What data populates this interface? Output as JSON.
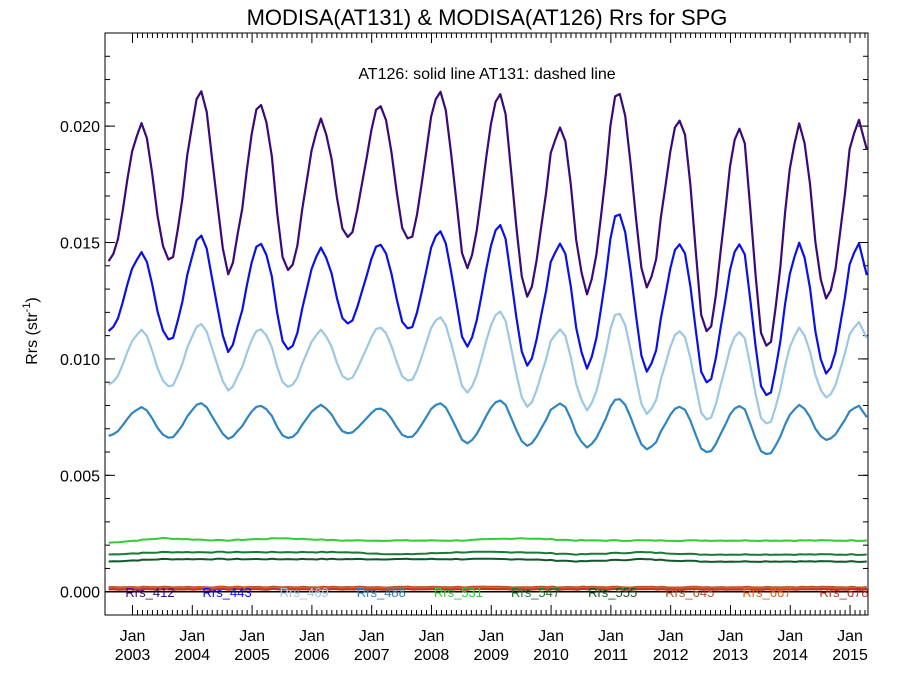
{
  "chart_data": {
    "type": "line",
    "title": "MODISA(AT131) & MODISA(AT126)  Rrs for SPG",
    "annotation": "AT126: solid line   AT131: dashed line",
    "ylabel_main": "Rrs (str",
    "ylabel_sup": "-1",
    "ylabel_end": ")",
    "xlabel": "",
    "ylim": [
      -0.001,
      0.024
    ],
    "xlim": [
      2002.54,
      2015.3
    ],
    "y_ticks": [
      "0.000",
      "0.005",
      "0.010",
      "0.015",
      "0.020"
    ],
    "y_tick_values": [
      0.0,
      0.005,
      0.01,
      0.015,
      0.02
    ],
    "x_ticks": [
      {
        "month": "Jan",
        "year": "2003",
        "x": 2003.0
      },
      {
        "month": "Jan",
        "year": "2004",
        "x": 2004.0
      },
      {
        "month": "Jan",
        "year": "2005",
        "x": 2005.0
      },
      {
        "month": "Jan",
        "year": "2006",
        "x": 2006.0
      },
      {
        "month": "Jan",
        "year": "2007",
        "x": 2007.0
      },
      {
        "month": "Jan",
        "year": "2008",
        "x": 2008.0
      },
      {
        "month": "Jan",
        "year": "2009",
        "x": 2009.0
      },
      {
        "month": "Jan",
        "year": "2010",
        "x": 2010.0
      },
      {
        "month": "Jan",
        "year": "2011",
        "x": 2011.0
      },
      {
        "month": "Jan",
        "year": "2012",
        "x": 2012.0
      },
      {
        "month": "Jan",
        "year": "2013",
        "x": 2013.0
      },
      {
        "month": "Jan",
        "year": "2014",
        "x": 2014.0
      },
      {
        "month": "Jan",
        "year": "2015",
        "x": 2015.0
      }
    ],
    "legend_position": "bottom",
    "grid": false,
    "series": [
      {
        "name": "Rrs_412",
        "color": "#3a0a78",
        "x": [
          2002.6,
          2003.15,
          2003.6,
          2004.15,
          2004.6,
          2005.15,
          2005.6,
          2006.15,
          2006.6,
          2007.15,
          2007.6,
          2008.15,
          2008.6,
          2009.15,
          2009.6,
          2010.15,
          2010.6,
          2011.15,
          2011.6,
          2012.15,
          2012.6,
          2013.15,
          2013.6,
          2014.15,
          2014.6,
          2015.15,
          2015.28
        ],
        "y": [
          0.0142,
          0.02,
          0.0142,
          0.0215,
          0.0138,
          0.021,
          0.0138,
          0.0202,
          0.0152,
          0.021,
          0.015,
          0.0215,
          0.014,
          0.0213,
          0.0128,
          0.02,
          0.0128,
          0.0215,
          0.013,
          0.0205,
          0.0112,
          0.02,
          0.0105,
          0.02,
          0.0125,
          0.0203,
          0.019
        ]
      },
      {
        "name": "Rrs_443",
        "color": "#0a10e8",
        "x": [
          2002.6,
          2003.15,
          2003.6,
          2004.15,
          2004.6,
          2005.15,
          2005.6,
          2006.15,
          2006.6,
          2007.15,
          2007.6,
          2008.15,
          2008.6,
          2009.15,
          2009.6,
          2010.15,
          2010.6,
          2011.15,
          2011.6,
          2012.15,
          2012.6,
          2013.15,
          2013.6,
          2014.15,
          2014.6,
          2015.15,
          2015.28
        ],
        "y": [
          0.0112,
          0.0145,
          0.0108,
          0.0153,
          0.0104,
          0.015,
          0.0104,
          0.0147,
          0.0115,
          0.015,
          0.0112,
          0.0155,
          0.0106,
          0.0157,
          0.0098,
          0.015,
          0.0096,
          0.0163,
          0.0094,
          0.0151,
          0.009,
          0.015,
          0.0084,
          0.0149,
          0.0093,
          0.015,
          0.0136
        ]
      },
      {
        "name": "Rrs_469",
        "color": "#9bc8e2",
        "x": [
          2002.6,
          2003.15,
          2003.6,
          2004.15,
          2004.6,
          2005.15,
          2005.6,
          2006.15,
          2006.6,
          2007.15,
          2007.6,
          2008.15,
          2008.6,
          2009.15,
          2009.6,
          2010.15,
          2010.6,
          2011.15,
          2011.6,
          2012.15,
          2012.6,
          2013.15,
          2013.6,
          2014.15,
          2014.6,
          2015.15,
          2015.28
        ],
        "y": [
          0.0089,
          0.0112,
          0.0088,
          0.0115,
          0.0087,
          0.0113,
          0.0088,
          0.0112,
          0.0091,
          0.0114,
          0.009,
          0.0118,
          0.0086,
          0.012,
          0.008,
          0.0113,
          0.0078,
          0.012,
          0.0076,
          0.0113,
          0.0074,
          0.0112,
          0.0072,
          0.0113,
          0.0083,
          0.0116,
          0.0109
        ]
      },
      {
        "name": "Rrs_488",
        "color": "#2f86be",
        "x": [
          2002.6,
          2003.15,
          2003.6,
          2004.15,
          2004.6,
          2005.15,
          2005.6,
          2006.15,
          2006.6,
          2007.15,
          2007.6,
          2008.15,
          2008.6,
          2009.15,
          2009.6,
          2010.15,
          2010.6,
          2011.15,
          2011.6,
          2012.15,
          2012.6,
          2013.15,
          2013.6,
          2014.15,
          2014.6,
          2015.15,
          2015.28
        ],
        "y": [
          0.0067,
          0.0079,
          0.0066,
          0.0081,
          0.0066,
          0.008,
          0.0066,
          0.008,
          0.0068,
          0.0079,
          0.0066,
          0.0081,
          0.0064,
          0.0082,
          0.0063,
          0.0081,
          0.0062,
          0.0083,
          0.0061,
          0.008,
          0.006,
          0.008,
          0.0059,
          0.008,
          0.0065,
          0.008,
          0.0075
        ]
      },
      {
        "name": "Rrs_531",
        "color": "#33cc33",
        "x": [
          2002.6,
          2003.5,
          2004.5,
          2005.5,
          2006.5,
          2007.5,
          2008.5,
          2009.5,
          2010.5,
          2011.5,
          2012.5,
          2013.5,
          2014.5,
          2015.28
        ],
        "y": [
          0.0021,
          0.0023,
          0.0022,
          0.0023,
          0.0022,
          0.0022,
          0.0022,
          0.0023,
          0.0022,
          0.0022,
          0.0022,
          0.0022,
          0.0022,
          0.0022
        ]
      },
      {
        "name": "Rrs_547",
        "color": "#1a7a38",
        "x": [
          2002.6,
          2003.5,
          2004.5,
          2005.5,
          2006.5,
          2007.5,
          2008.5,
          2009.5,
          2010.5,
          2011.5,
          2012.5,
          2013.5,
          2014.5,
          2015.28
        ],
        "y": [
          0.0016,
          0.0017,
          0.0017,
          0.0017,
          0.0017,
          0.0016,
          0.0017,
          0.0017,
          0.0016,
          0.0017,
          0.0016,
          0.0016,
          0.0016,
          0.0016
        ]
      },
      {
        "name": "Rrs_555",
        "color": "#0e5a2a",
        "x": [
          2002.6,
          2003.5,
          2004.5,
          2005.5,
          2006.5,
          2007.5,
          2008.5,
          2009.5,
          2010.5,
          2011.5,
          2012.5,
          2013.5,
          2014.5,
          2015.28
        ],
        "y": [
          0.0013,
          0.0014,
          0.0014,
          0.0014,
          0.0014,
          0.0014,
          0.0014,
          0.0014,
          0.0013,
          0.0014,
          0.0013,
          0.0013,
          0.0013,
          0.0013
        ]
      },
      {
        "name": "Rrs_645",
        "color": "#b5502a",
        "x": [
          2002.6,
          2015.28
        ],
        "y": [
          0.0002,
          0.0002
        ]
      },
      {
        "name": "Rrs_667",
        "color": "#e0621a",
        "x": [
          2002.6,
          2015.28
        ],
        "y": [
          0.00015,
          0.00015
        ]
      },
      {
        "name": "Rrs_678",
        "color": "#c0302a",
        "x": [
          2002.6,
          2015.28
        ],
        "y": [
          0.0001,
          0.0001
        ]
      }
    ]
  }
}
